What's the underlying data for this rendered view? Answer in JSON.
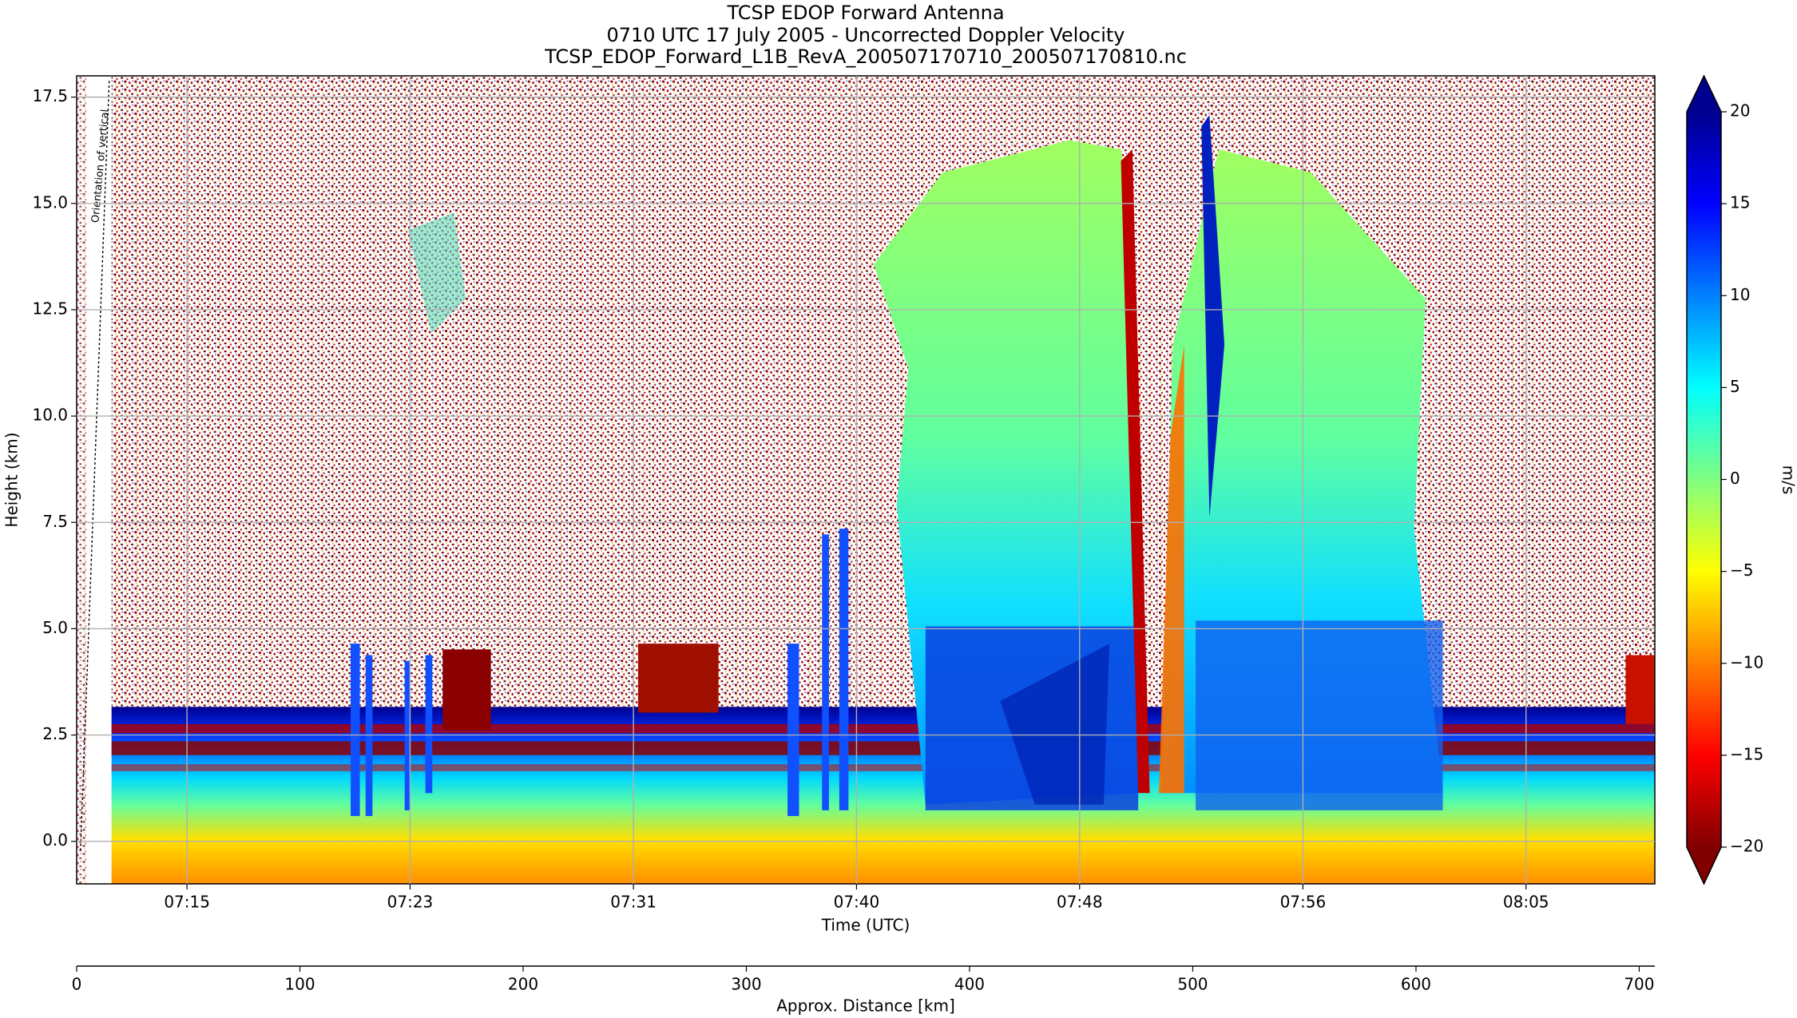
{
  "chart_data": {
    "type": "heatmap",
    "title": [
      "TCSP EDOP Forward Antenna",
      "0710 UTC 17 July 2005 - Uncorrected Doppler Velocity",
      "TCSP_EDOP_Forward_L1B_RevA_200507170710_200507170810.nc"
    ],
    "xlabel": "Time (UTC)",
    "ylabel": "Height (km)",
    "x2label": "Approx. Distance [km]",
    "annotation": "Orientation of vertical",
    "xlim": [
      10.88,
      69.81
    ],
    "xticks": [
      {
        "value": 15,
        "label": "07:15"
      },
      {
        "value": 23.33,
        "label": "07:23"
      },
      {
        "value": 31.67,
        "label": "07:31"
      },
      {
        "value": 40,
        "label": "07:40"
      },
      {
        "value": 48.33,
        "label": "07:48"
      },
      {
        "value": 56.67,
        "label": "07:56"
      },
      {
        "value": 65,
        "label": "08:05"
      }
    ],
    "ylim": [
      -1,
      18
    ],
    "yticks": [
      {
        "value": 0,
        "label": "0.0"
      },
      {
        "value": 2.5,
        "label": "2.5"
      },
      {
        "value": 5,
        "label": "5.0"
      },
      {
        "value": 7.5,
        "label": "7.5"
      },
      {
        "value": 10,
        "label": "10.0"
      },
      {
        "value": 12.5,
        "label": "12.5"
      },
      {
        "value": 15,
        "label": "15.0"
      },
      {
        "value": 17.5,
        "label": "17.5"
      }
    ],
    "x2lim": [
      0,
      707
    ],
    "x2ticks": [
      0,
      100,
      200,
      300,
      400,
      500,
      600,
      700
    ],
    "grid": true,
    "colorbar": {
      "label": "m/s",
      "colormap": "jet",
      "clim": [
        -20,
        20
      ],
      "ticks": [
        {
          "value": -20,
          "label": "−20"
        },
        {
          "value": -15,
          "label": "−15"
        },
        {
          "value": -10,
          "label": "−10"
        },
        {
          "value": -5,
          "label": "−5"
        },
        0,
        5,
        10,
        15,
        20
      ]
    }
  }
}
